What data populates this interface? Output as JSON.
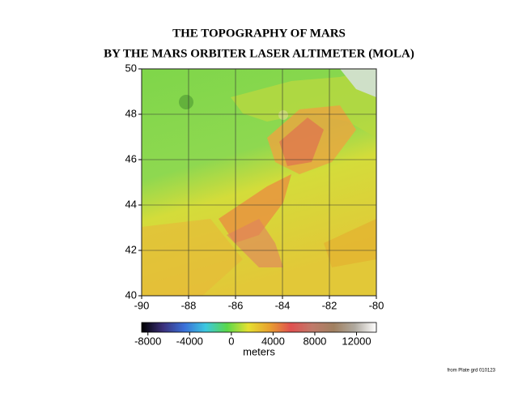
{
  "title": "THE TOPOGRAPHY OF MARS",
  "subtitle": "BY THE MARS ORBITER LASER ALTIMETER (MOLA)",
  "map": {
    "xlim": [
      -90,
      -80
    ],
    "ylim": [
      40,
      50
    ],
    "xticks": [
      -90,
      -88,
      -86,
      -84,
      -82,
      -80
    ],
    "yticks": [
      40,
      42,
      44,
      46,
      48,
      50
    ],
    "grid": true
  },
  "colorbar": {
    "lim": [
      -8600,
      13900
    ],
    "ticks": [
      -8000,
      -4000,
      0,
      4000,
      8000,
      12000
    ],
    "label": "meters",
    "colors": [
      "#000000",
      "#3b2f7a",
      "#3a6fd8",
      "#3cc8e0",
      "#5ad84a",
      "#e6e030",
      "#e8a030",
      "#e05050",
      "#c07a6a",
      "#a08060",
      "#b0aaa0",
      "#ffffff"
    ]
  },
  "credit": "from Plate grd 010123"
}
